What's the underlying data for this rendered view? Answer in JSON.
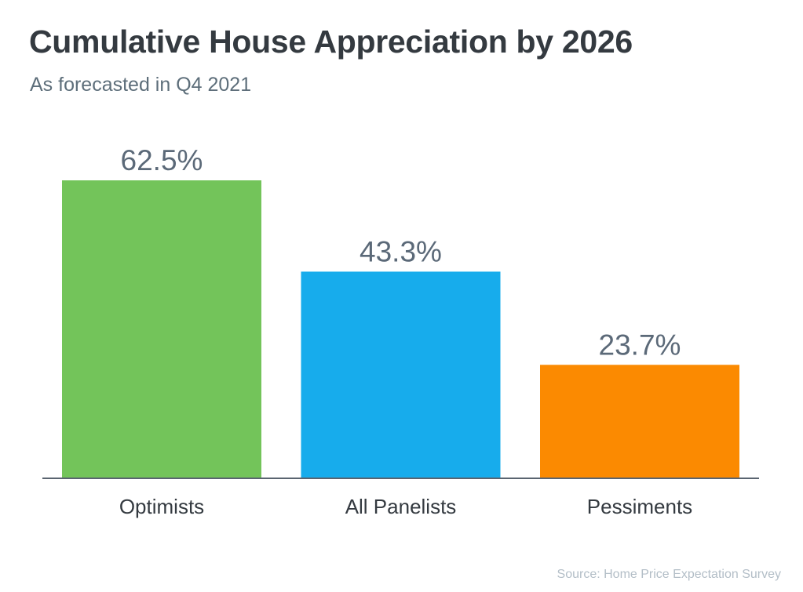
{
  "chart_data": {
    "type": "bar",
    "title": "Cumulative House Appreciation by 2026",
    "subtitle": "As forecasted in Q4 2021",
    "xlabel": "",
    "ylabel": "",
    "categories": [
      "Optimists",
      "All Panelists",
      "Pessiments"
    ],
    "values": [
      62.5,
      43.3,
      23.7
    ],
    "value_labels": [
      "62.5%",
      "43.3%",
      "23.7%"
    ],
    "colors": [
      "#73c45a",
      "#17acec",
      "#fb8a01"
    ],
    "ylim": [
      0,
      62.5
    ],
    "grid": false,
    "legend": "none",
    "source": "Source: Home Price Expectation Survey"
  }
}
